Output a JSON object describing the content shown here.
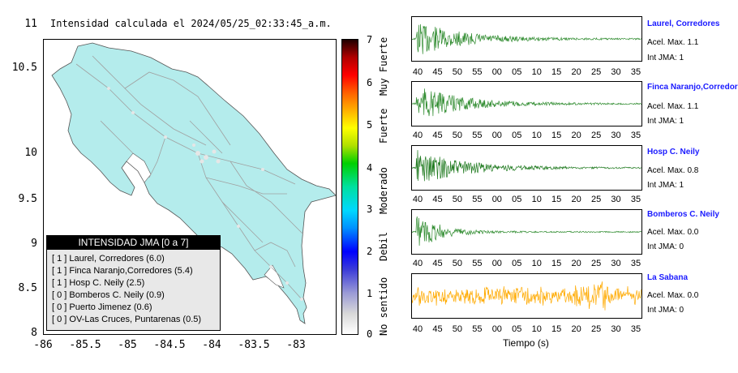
{
  "map": {
    "title": "Intensidad calculada el 2024/05/25_02:33:45_a.m.",
    "y_ticks": [
      "11",
      "10.5",
      "10",
      "9.5",
      "9",
      "8.5",
      "8"
    ],
    "x_ticks": [
      "-86",
      "-85.5",
      "-85",
      "-84.5",
      "-84",
      "-83.5",
      "-83"
    ],
    "land_color": "#b4ecec",
    "road_color": "#a0a0a0"
  },
  "colorbar": {
    "ticks": [
      "7",
      "6",
      "5",
      "4",
      "3",
      "2",
      "1",
      "0"
    ],
    "labels": [
      "Muy Fuerte",
      "Fuerte",
      "Moderado",
      "Debil",
      "No sentido"
    ]
  },
  "legend": {
    "title": "INTENSIDAD JMA [0 a 7]",
    "rows": [
      "[ 1 ] Laurel, Corredores (6.0)",
      "[ 1 ] Finca Naranjo,Corredores (5.4)",
      "[ 1 ] Hosp C. Neily (2.5)",
      "[ 0 ] Bomberos C. Neily (0.9)",
      "[ 0 ] Puerto Jimenez (0.6)",
      "[ 0 ] OV-Las Cruces, Puntarenas (0.5)"
    ]
  },
  "time_ticks": [
    "40",
    "45",
    "50",
    "55",
    "00",
    "05",
    "10",
    "15",
    "20",
    "25",
    "30",
    "35"
  ],
  "xlabel": "Tiempo (s)",
  "stations": [
    {
      "name": "Laurel, Corredores",
      "acel": "Acel. Max. 1.1",
      "jma": "Int JMA: 1",
      "color": "#2e8b2e"
    },
    {
      "name": "Finca Naranjo,Corredores",
      "acel": "Acel. Max. 1.1",
      "jma": "Int JMA: 1",
      "color": "#2e8b2e"
    },
    {
      "name": "Hosp C. Neily",
      "acel": "Acel. Max. 0.8",
      "jma": "Int JMA: 1",
      "color": "#1f7a1f"
    },
    {
      "name": "Bomberos C. Neily",
      "acel": "Acel. Max. 0.0",
      "jma": "Int JMA: 0",
      "color": "#2e8b2e"
    },
    {
      "name": "La Sabana",
      "acel": "Acel. Max. 0.0",
      "jma": "Int JMA: 0",
      "color": "#ffaa00"
    }
  ]
}
